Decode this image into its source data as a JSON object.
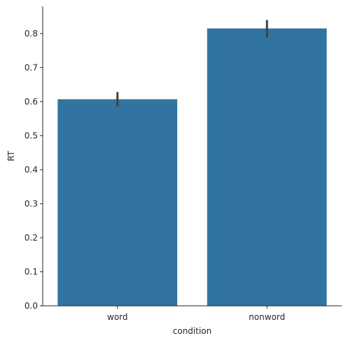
{
  "chart_data": {
    "type": "bar",
    "categories": [
      "word",
      "nonword"
    ],
    "values": [
      0.607,
      0.815
    ],
    "error_bars": [
      {
        "low": 0.585,
        "high": 0.628
      },
      {
        "low": 0.789,
        "high": 0.84
      }
    ],
    "xlabel": "condition",
    "ylabel": "RT",
    "ylim": [
      0,
      0.88
    ],
    "yticks": [
      "0.0",
      "0.1",
      "0.2",
      "0.3",
      "0.4",
      "0.5",
      "0.6",
      "0.7",
      "0.8"
    ],
    "bar_color": "#3274a1",
    "errorbar_color": "#424242",
    "grid": false,
    "legend": "none"
  }
}
